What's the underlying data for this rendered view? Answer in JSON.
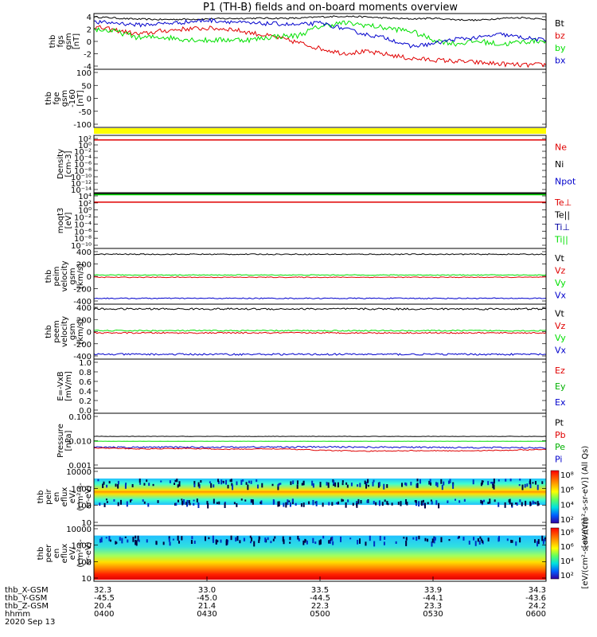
{
  "title": "P1 (TH-B) fields and on-board moments overview",
  "colors": {
    "black": "#000000",
    "red": "#e00000",
    "green": "#00e000",
    "blue": "#0000cc",
    "yellow": "#ffff00",
    "darkgreen": "#00b000",
    "darkblue": "#0000a0",
    "darkred": "#990000"
  },
  "chart_data": [
    {
      "type": "line",
      "ylabel": [
        "thb",
        "fgs",
        "gsm",
        "[nT]"
      ],
      "yticks": [
        "4",
        "2",
        "0",
        "-2",
        "-4"
      ],
      "ylim": [
        -4,
        4.3
      ],
      "legend": [
        {
          "label": "Bt",
          "color": "black"
        },
        {
          "label": "bz",
          "color": "red"
        },
        {
          "label": "by",
          "color": "green"
        },
        {
          "label": "bx",
          "color": "blue"
        }
      ],
      "series": [
        {
          "name": "Bt",
          "color": "black",
          "x": [
            0,
            0.03,
            0.08,
            0.15,
            0.25,
            0.35,
            0.45,
            0.5,
            0.55,
            0.6,
            0.65,
            0.7,
            0.75,
            0.8,
            0.85,
            0.9,
            0.95,
            1
          ],
          "values": [
            3.8,
            3.7,
            3.5,
            3.4,
            3.5,
            3.6,
            3.6,
            3.8,
            3.9,
            3.8,
            3.6,
            3.5,
            3.6,
            3.4,
            3.3,
            3.6,
            3.7,
            3.4
          ],
          "noise": 0.12
        },
        {
          "name": "bz",
          "color": "red",
          "x": [
            0,
            0.05,
            0.1,
            0.15,
            0.2,
            0.25,
            0.3,
            0.35,
            0.4,
            0.45,
            0.5,
            0.55,
            0.6,
            0.65,
            0.7,
            0.75,
            0.8,
            0.85,
            0.9,
            0.95,
            1
          ],
          "values": [
            2.3,
            1.8,
            1.2,
            1.7,
            2.0,
            2.1,
            2.0,
            1.4,
            0.8,
            0.0,
            -0.9,
            -1.6,
            -1.4,
            -1.8,
            -2.4,
            -2.6,
            -2.8,
            -3.0,
            -3.2,
            -3.4,
            -3.3
          ],
          "noise": 0.35
        },
        {
          "name": "by",
          "color": "green",
          "x": [
            0,
            0.05,
            0.1,
            0.15,
            0.2,
            0.25,
            0.3,
            0.35,
            0.4,
            0.45,
            0.5,
            0.55,
            0.6,
            0.65,
            0.7,
            0.75,
            0.8,
            0.85,
            0.9,
            0.95,
            1
          ],
          "values": [
            2.0,
            1.6,
            0.7,
            0.8,
            0.5,
            0.3,
            0.4,
            0.4,
            0.9,
            1.0,
            2.4,
            2.9,
            2.6,
            2.1,
            1.7,
            0.4,
            -0.2,
            0.2,
            -0.3,
            0.1,
            0.3
          ],
          "noise": 0.4
        },
        {
          "name": "bx",
          "color": "blue",
          "x": [
            0,
            0.05,
            0.1,
            0.15,
            0.2,
            0.25,
            0.3,
            0.35,
            0.4,
            0.45,
            0.5,
            0.55,
            0.6,
            0.65,
            0.7,
            0.75,
            0.8,
            0.85,
            0.9,
            0.95,
            1
          ],
          "values": [
            3.0,
            2.9,
            2.6,
            2.8,
            3.0,
            3.3,
            3.1,
            2.8,
            2.8,
            2.6,
            2.9,
            2.1,
            1.2,
            0.6,
            -0.6,
            -0.2,
            0.5,
            0.7,
            1.2,
            0.7,
            0.3
          ],
          "noise": 0.3
        }
      ]
    },
    {
      "type": "line",
      "ylabel": [
        "thb",
        "fge",
        "gsm",
        "-160",
        "[nT]"
      ],
      "yticks": [
        "100",
        "50",
        "0",
        "-50",
        "-100"
      ],
      "ylim": [
        -125,
        105
      ],
      "series": []
    },
    {
      "type": "line",
      "ylabel": [
        "Density",
        "[cm-3]"
      ],
      "yticks": [
        "10²",
        "10⁰",
        "10⁻²",
        "10⁻⁴",
        "10⁻⁶",
        "10⁻⁸",
        "10⁻¹⁰",
        "10⁻¹²",
        "10⁻¹⁴"
      ],
      "legend": [
        {
          "label": "Ne",
          "color": "red"
        },
        {
          "label": "Ni",
          "color": "black"
        },
        {
          "label": "Npot",
          "color": "blue"
        }
      ],
      "series": [
        {
          "name": "Ne",
          "color": "red",
          "level": 0.08
        }
      ]
    },
    {
      "type": "line",
      "ylabel": [
        "moqt3",
        "[eV]"
      ],
      "yticks": [
        "10⁴",
        "10²",
        "10⁰",
        "10⁻²",
        "10⁻⁴",
        "10⁻⁶",
        "10⁻⁸",
        "10⁻¹⁰"
      ],
      "legend": [
        {
          "label": "Te⊥",
          "color": "red"
        },
        {
          "label": "Te||",
          "color": "black"
        },
        {
          "label": "Ti⊥",
          "color": "darkblue"
        },
        {
          "label": "Ti||",
          "color": "green"
        }
      ],
      "series": [
        {
          "name": "Te||",
          "color": "black",
          "level": 0.02
        },
        {
          "name": "Ti||",
          "color": "green",
          "level": 0.035
        },
        {
          "name": "Te⊥",
          "color": "red",
          "level": 0.17
        }
      ]
    },
    {
      "type": "line",
      "ylabel": [
        "thb",
        "peim",
        "velocity",
        "gsm",
        "[km/s]"
      ],
      "yticks": [
        "400",
        "200",
        "0",
        "-200",
        "-400"
      ],
      "ylim": [
        -430,
        430
      ],
      "legend": [
        {
          "label": "Vt",
          "color": "black"
        },
        {
          "label": "Vz",
          "color": "red"
        },
        {
          "label": "Vy",
          "color": "green"
        },
        {
          "label": "Vx",
          "color": "blue"
        }
      ],
      "series": [
        {
          "name": "Vt",
          "color": "black",
          "x": [
            0,
            1
          ],
          "values": [
            340,
            340
          ],
          "noise": 8
        },
        {
          "name": "Vz",
          "color": "red",
          "x": [
            0,
            1
          ],
          "values": [
            -15,
            -15
          ],
          "noise": 6
        },
        {
          "name": "Vy",
          "color": "green",
          "x": [
            0,
            1
          ],
          "values": [
            20,
            20
          ],
          "noise": 6
        },
        {
          "name": "Vx",
          "color": "blue",
          "x": [
            0,
            1
          ],
          "values": [
            -340,
            -340
          ],
          "noise": 8
        }
      ]
    },
    {
      "type": "line",
      "ylabel": [
        "thb",
        "peem",
        "velocity",
        "gsm",
        "[km/s]"
      ],
      "yticks": [
        "400",
        "200",
        "0",
        "-200",
        "-400"
      ],
      "ylim": [
        -430,
        430
      ],
      "legend": [
        {
          "label": "Vt",
          "color": "black"
        },
        {
          "label": "Vz",
          "color": "red"
        },
        {
          "label": "Vy",
          "color": "green"
        },
        {
          "label": "Vx",
          "color": "blue"
        }
      ],
      "series": [
        {
          "name": "Vt",
          "color": "black",
          "x": [
            0,
            1
          ],
          "values": [
            355,
            355
          ],
          "noise": 14
        },
        {
          "name": "Vz",
          "color": "red",
          "x": [
            0,
            1
          ],
          "values": [
            -20,
            -20
          ],
          "noise": 10
        },
        {
          "name": "Vy",
          "color": "green",
          "x": [
            0,
            1
          ],
          "values": [
            15,
            15
          ],
          "noise": 10
        },
        {
          "name": "Vx",
          "color": "blue",
          "x": [
            0,
            1
          ],
          "values": [
            -355,
            -355
          ],
          "noise": 14
        }
      ]
    },
    {
      "type": "line",
      "ylabel": [
        "E=-VxB",
        "[mV/m]"
      ],
      "yticks": [
        "1.0",
        "0.8",
        "0.6",
        "0.4",
        "0.2",
        "0.0"
      ],
      "ylim": [
        0,
        1.0
      ],
      "legend": [
        {
          "label": "Ez",
          "color": "red"
        },
        {
          "label": "Ey",
          "color": "darkgreen"
        },
        {
          "label": "Ex",
          "color": "blue"
        }
      ],
      "series": []
    },
    {
      "type": "line",
      "ylabel": [
        "Pressure",
        "[nPa]"
      ],
      "yticks": [
        "0.100",
        "0.010",
        "0.001"
      ],
      "ylog": true,
      "ylim": [
        0.0007,
        0.25
      ],
      "legend": [
        {
          "label": "Pt",
          "color": "black"
        },
        {
          "label": "Pb",
          "color": "red"
        },
        {
          "label": "Pe",
          "color": "darkgreen"
        },
        {
          "label": "Pi",
          "color": "blue"
        }
      ],
      "series": [
        {
          "name": "Pt",
          "color": "black",
          "x": [
            0,
            1
          ],
          "values": [
            0.021,
            0.021
          ],
          "noise": 0.02
        },
        {
          "name": "Pe",
          "color": "green",
          "x": [
            0,
            1
          ],
          "values": [
            0.0125,
            0.0125
          ],
          "noise": 0.01
        },
        {
          "name": "Pi",
          "color": "blue",
          "x": [
            0,
            0.5,
            1
          ],
          "values": [
            0.0065,
            0.0068,
            0.0062
          ],
          "noise": 0.08
        },
        {
          "name": "Pb",
          "color": "red",
          "x": [
            0,
            0.1,
            0.2,
            0.3,
            0.4,
            0.5,
            0.6,
            0.7,
            0.8,
            0.9,
            1
          ],
          "values": [
            0.0062,
            0.0055,
            0.0058,
            0.0053,
            0.0056,
            0.0048,
            0.0043,
            0.0046,
            0.0045,
            0.0047,
            0.0052
          ],
          "noise": 0.05
        }
      ]
    },
    {
      "type": "heatmap",
      "ylabel": [
        "thb",
        "peir",
        "en",
        "eflux",
        "eV/",
        "(cm²-s-",
        "sr-eV)"
      ],
      "yticks": [
        "10000",
        "1000",
        "100",
        "10"
      ],
      "colorbar_ticks": [
        "10⁸",
        "10⁶",
        "10⁴",
        "10²"
      ],
      "colorbar_label": "[eV/(cm²-s-sr-eV)] (All Qs)"
    },
    {
      "type": "heatmap",
      "ylabel": [
        "thb",
        "peer",
        "en",
        "eflux",
        "eV/",
        "(cm²-s-",
        "sr-eV)"
      ],
      "yticks": [
        "10000",
        "1000",
        "100",
        "10"
      ],
      "colorbar_ticks": [
        "10⁸",
        "10⁶",
        "10⁴",
        "10²"
      ],
      "colorbar_label": "[eV/(cm²-s-sr-eV)]"
    }
  ],
  "x_axis": {
    "row_labels": [
      "thb_X-GSM",
      "thb_Y-GSM",
      "thb_Z-GSM",
      "hhmm",
      "2020 Sep 13"
    ],
    "columns": [
      {
        "x": "32.3",
        "y": "-45.5",
        "z": "20.4",
        "t": "0400"
      },
      {
        "x": "33.0",
        "y": "-45.0",
        "z": "21.4",
        "t": "0430"
      },
      {
        "x": "33.5",
        "y": "-44.5",
        "z": "22.3",
        "t": "0500"
      },
      {
        "x": "33.9",
        "y": "-44.1",
        "z": "23.3",
        "t": "0530"
      },
      {
        "x": "34.3",
        "y": "-43.6",
        "z": "24.2",
        "t": "0600"
      }
    ]
  }
}
